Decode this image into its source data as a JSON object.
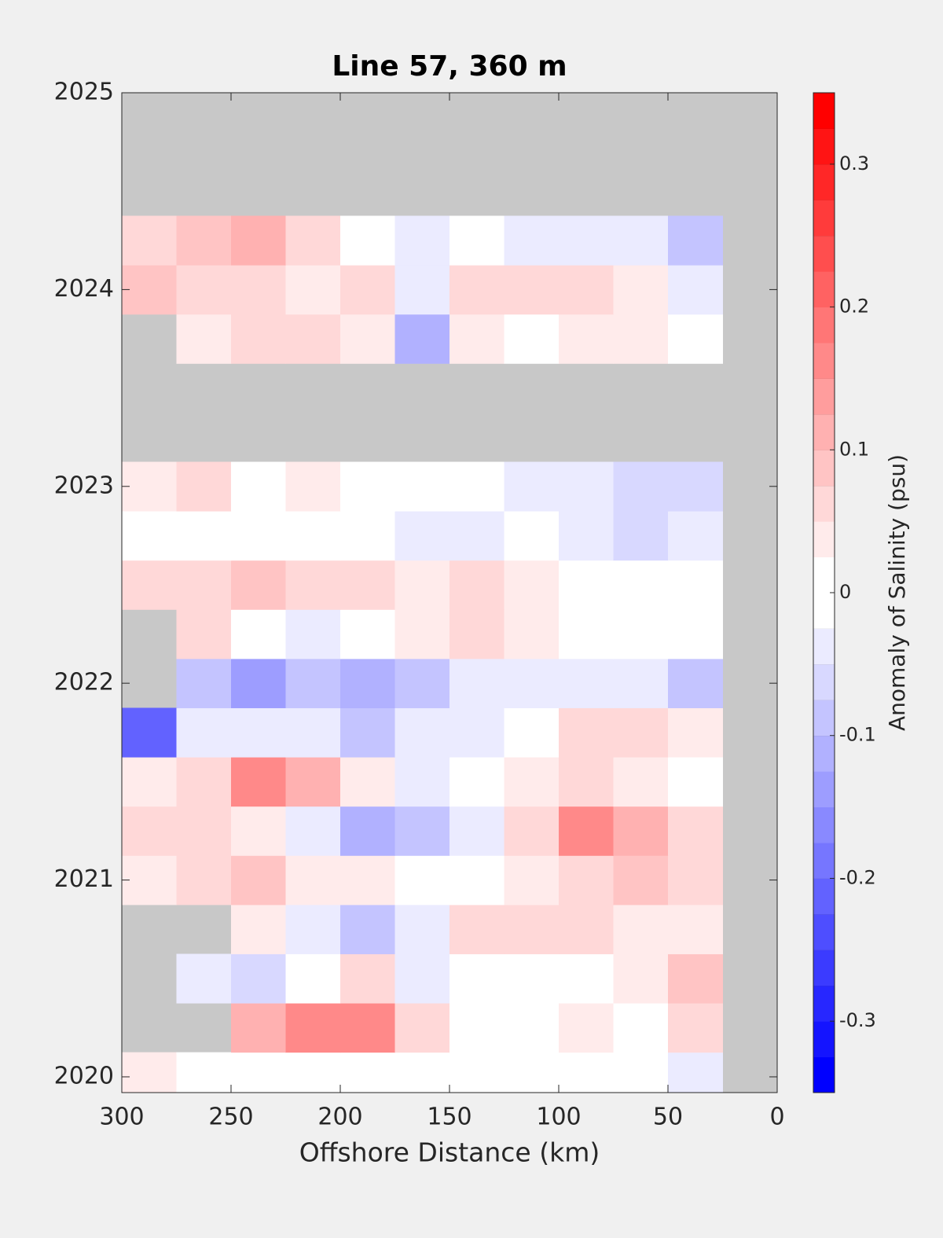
{
  "chart_data": {
    "type": "contour",
    "title": "Line 57, 360 m",
    "xlabel": "Offshore Distance (km)",
    "colorbar_label": "Anomaly of Salinity (psu)",
    "xlim": [
      300,
      0
    ],
    "xticks": [
      300,
      250,
      200,
      150,
      100,
      50,
      0
    ],
    "ylim": [
      2019.92,
      2025
    ],
    "yticks": [
      2020,
      2021,
      2022,
      2023,
      2024,
      2025
    ],
    "clim": [
      -0.35,
      0.35
    ],
    "cticks": [
      -0.3,
      -0.2,
      -0.1,
      0,
      0.1,
      0.2,
      0.3
    ],
    "contour_levels": 28,
    "mask_color": "#c8c8c8",
    "low_color": "#0000ff",
    "mid_color": "#ffffff",
    "high_color": "#ff0000",
    "x": [
      287.5,
      262.5,
      237.5,
      212.5,
      187.5,
      162.5,
      137.5,
      112.5,
      87.5,
      62.5,
      37.5
    ],
    "y": [
      2020.0,
      2020.25,
      2020.5,
      2020.75,
      2021.0,
      2021.25,
      2021.5,
      2021.75,
      2022.0,
      2022.25,
      2022.5,
      2022.75,
      2023.0,
      2023.25,
      2023.5,
      2023.75,
      2024.0,
      2024.25
    ],
    "z": [
      [
        0.03,
        0,
        0,
        0,
        0,
        0,
        0,
        0,
        0,
        0,
        -0.03
      ],
      [
        null,
        null,
        0.12,
        0.15,
        0.17,
        0.05,
        0,
        0,
        0.03,
        0,
        0.05
      ],
      [
        null,
        -0.05,
        -0.07,
        0,
        0.05,
        -0.03,
        0,
        0,
        0,
        0.03,
        0.08
      ],
      [
        null,
        null,
        0.03,
        -0.05,
        -0.1,
        -0.03,
        0.05,
        0.07,
        0.05,
        0.03,
        0.04
      ],
      [
        0.03,
        0.07,
        0.08,
        0.03,
        0.03,
        0,
        0,
        0.03,
        0.07,
        0.08,
        0.07
      ],
      [
        0.05,
        0.07,
        0.03,
        -0.05,
        -0.12,
        -0.1,
        -0.03,
        0.07,
        0.15,
        0.1,
        0.05
      ],
      [
        0.03,
        0.07,
        0.15,
        0.1,
        0.03,
        -0.05,
        0,
        0.03,
        0.05,
        0.03,
        0
      ],
      [
        -0.2,
        -0.05,
        -0.05,
        -0.05,
        -0.08,
        -0.05,
        -0.03,
        0,
        0.05,
        0.07,
        0.03
      ],
      [
        null,
        -0.08,
        -0.13,
        -0.08,
        -0.12,
        -0.08,
        -0.05,
        -0.03,
        -0.03,
        -0.05,
        -0.08
      ],
      [
        null,
        0.05,
        0,
        -0.03,
        0,
        0.03,
        0.05,
        0.03,
        0,
        0,
        0
      ],
      [
        0.07,
        0.05,
        0.08,
        0.07,
        0.05,
        0.03,
        0.05,
        0.03,
        0,
        0,
        0
      ],
      [
        0,
        0,
        0,
        0,
        0,
        -0.03,
        -0.03,
        0,
        -0.05,
        -0.07,
        -0.03
      ],
      [
        0.03,
        0.05,
        0,
        0.03,
        0,
        0,
        0,
        -0.03,
        -0.05,
        -0.07,
        -0.07
      ],
      [
        null,
        null,
        null,
        null,
        null,
        null,
        null,
        null,
        null,
        null,
        null
      ],
      [
        null,
        null,
        null,
        null,
        null,
        null,
        null,
        null,
        null,
        null,
        null
      ],
      [
        null,
        0.03,
        0.05,
        0.05,
        0.03,
        -0.12,
        0.03,
        0,
        0.03,
        0.03,
        0
      ],
      [
        0.08,
        0.07,
        0.05,
        0.03,
        0.05,
        -0.05,
        0.05,
        0.07,
        0.05,
        0.03,
        -0.05
      ],
      [
        0.07,
        0.08,
        0.1,
        0.05,
        0,
        -0.03,
        0,
        -0.03,
        -0.03,
        -0.05,
        -0.08
      ]
    ]
  }
}
